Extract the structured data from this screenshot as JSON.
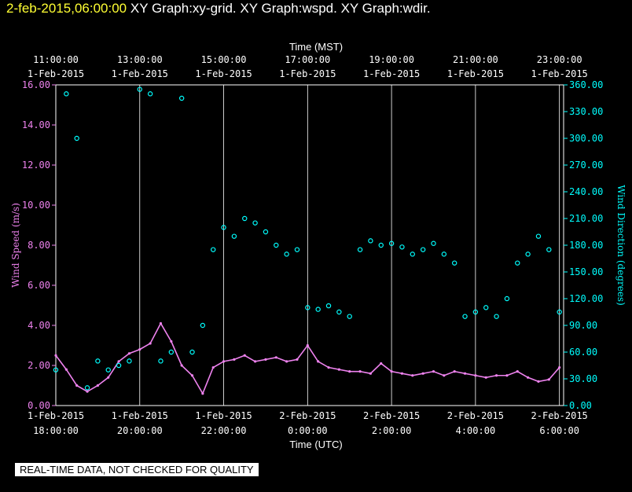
{
  "header": {
    "timestamp": "2-feb-2015,06:00:00",
    "title": "XY Graph:xy-grid.  XY Graph:wspd.  XY Graph:wdir."
  },
  "banner": "REAL-TIME DATA, NOT CHECKED FOR QUALITY",
  "colors": {
    "background": "#000000",
    "grid": "#ffffff",
    "wind_speed": "#ee82ee",
    "wind_direction": "#00ffff",
    "timestamp": "#ffff33"
  },
  "chart_data": {
    "type": "line",
    "title": "",
    "xlabel_top": "Time (MST)",
    "xlabel_bottom": "Time (UTC)",
    "ylabel_left": "Wind Speed (m/s)",
    "ylabel_right": "Wind Direction (degrees)",
    "xlim_utc_hours": [
      18,
      30.1
    ],
    "ylim_left": [
      0,
      16
    ],
    "ylim_right": [
      0,
      360
    ],
    "grid": "vertical",
    "x_ticks_top": [
      {
        "h": 18,
        "time": "11:00:00",
        "date": "1-Feb-2015"
      },
      {
        "h": 20,
        "time": "13:00:00",
        "date": "1-Feb-2015"
      },
      {
        "h": 22,
        "time": "15:00:00",
        "date": "1-Feb-2015"
      },
      {
        "h": 24,
        "time": "17:00:00",
        "date": "1-Feb-2015"
      },
      {
        "h": 26,
        "time": "19:00:00",
        "date": "1-Feb-2015"
      },
      {
        "h": 28,
        "time": "21:00:00",
        "date": "1-Feb-2015"
      },
      {
        "h": 30,
        "time": "23:00:00",
        "date": "1-Feb-2015"
      }
    ],
    "x_ticks_bottom": [
      {
        "h": 18,
        "date": "1-Feb-2015",
        "time": "18:00:00"
      },
      {
        "h": 20,
        "date": "1-Feb-2015",
        "time": "20:00:00"
      },
      {
        "h": 22,
        "date": "1-Feb-2015",
        "time": "22:00:00"
      },
      {
        "h": 24,
        "date": "2-Feb-2015",
        "time": "0:00:00"
      },
      {
        "h": 26,
        "date": "2-Feb-2015",
        "time": "2:00:00"
      },
      {
        "h": 28,
        "date": "2-Feb-2015",
        "time": "4:00:00"
      },
      {
        "h": 30,
        "date": "2-Feb-2015",
        "time": "6:00:00"
      }
    ],
    "y_ticks_left": [
      "0.00",
      "2.00",
      "4.00",
      "6.00",
      "8.00",
      "10.00",
      "12.00",
      "14.00",
      "16.00"
    ],
    "y_ticks_right": [
      "0.00",
      "30.00",
      "60.00",
      "90.00",
      "120.00",
      "150.00",
      "180.00",
      "210.00",
      "240.00",
      "270.00",
      "300.00",
      "330.00",
      "360.00"
    ],
    "series": [
      {
        "name": "Wind Speed (m/s)",
        "axis": "left",
        "x": [
          18.0,
          18.25,
          18.5,
          18.75,
          19.0,
          19.25,
          19.5,
          19.75,
          20.0,
          20.25,
          20.5,
          20.75,
          21.0,
          21.25,
          21.5,
          21.75,
          22.0,
          22.25,
          22.5,
          22.75,
          23.0,
          23.25,
          23.5,
          23.75,
          24.0,
          24.25,
          24.5,
          24.75,
          25.0,
          25.25,
          25.5,
          25.75,
          26.0,
          26.25,
          26.5,
          26.75,
          27.0,
          27.25,
          27.5,
          27.75,
          28.0,
          28.25,
          28.5,
          28.75,
          29.0,
          29.25,
          29.5,
          29.75,
          30.0
        ],
        "values": [
          2.5,
          1.8,
          1.0,
          0.7,
          1.0,
          1.4,
          2.2,
          2.6,
          2.8,
          3.1,
          4.1,
          3.2,
          2.0,
          1.5,
          0.6,
          1.9,
          2.2,
          2.3,
          2.5,
          2.2,
          2.3,
          2.4,
          2.2,
          2.3,
          3.0,
          2.2,
          1.9,
          1.8,
          1.7,
          1.7,
          1.6,
          2.1,
          1.7,
          1.6,
          1.5,
          1.6,
          1.7,
          1.5,
          1.7,
          1.6,
          1.5,
          1.4,
          1.5,
          1.5,
          1.7,
          1.4,
          1.2,
          1.3,
          1.9
        ]
      },
      {
        "name": "Wind Direction (degrees)",
        "axis": "right",
        "x": [
          18.0,
          18.25,
          18.5,
          18.75,
          19.0,
          19.25,
          19.5,
          19.75,
          20.0,
          20.25,
          20.5,
          20.75,
          21.0,
          21.25,
          21.5,
          21.75,
          22.0,
          22.25,
          22.5,
          22.75,
          23.0,
          23.25,
          23.5,
          23.75,
          24.0,
          24.25,
          24.5,
          24.75,
          25.0,
          25.25,
          25.5,
          25.75,
          26.0,
          26.25,
          26.5,
          26.75,
          27.0,
          27.25,
          27.5,
          27.75,
          28.0,
          28.25,
          28.5,
          28.75,
          29.0,
          29.25,
          29.5,
          29.75,
          30.0
        ],
        "values": [
          40,
          350,
          300,
          20,
          50,
          40,
          45,
          50,
          355,
          350,
          50,
          60,
          345,
          60,
          90,
          175,
          200,
          190,
          210,
          205,
          195,
          180,
          170,
          175,
          110,
          108,
          112,
          105,
          100,
          175,
          185,
          180,
          182,
          178,
          170,
          175,
          182,
          170,
          160,
          100,
          105,
          110,
          100,
          120,
          160,
          170,
          190,
          175,
          105
        ]
      }
    ]
  }
}
